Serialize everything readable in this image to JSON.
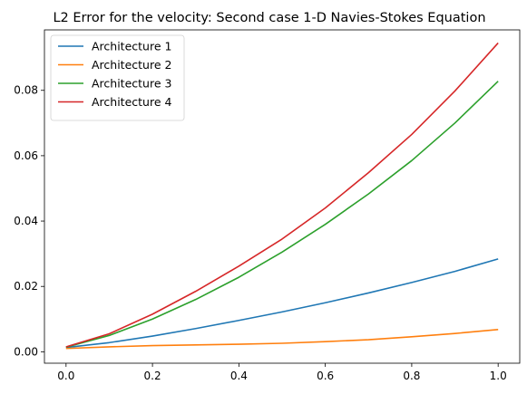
{
  "chart_data": {
    "type": "line",
    "title": "L2 Error for the velocity: Second case 1-D Navies-Stokes Equation",
    "xlabel": "",
    "ylabel": "",
    "xlim": [
      -0.05,
      1.05
    ],
    "ylim": [
      -0.0035,
      0.0985
    ],
    "x_ticks": [
      0.0,
      0.2,
      0.4,
      0.6,
      0.8,
      1.0
    ],
    "x_tick_labels": [
      "0.0",
      "0.2",
      "0.4",
      "0.6",
      "0.8",
      "1.0"
    ],
    "y_ticks": [
      0.0,
      0.02,
      0.04,
      0.06,
      0.08
    ],
    "y_tick_labels": [
      "0.00",
      "0.02",
      "0.04",
      "0.06",
      "0.08"
    ],
    "grid": false,
    "legend_position": "top-left",
    "x": [
      0.0,
      0.1,
      0.2,
      0.3,
      0.4,
      0.5,
      0.6,
      0.7,
      0.8,
      0.9,
      1.0
    ],
    "series": [
      {
        "name": "Architecture 1",
        "color": "#1f77b4",
        "values": [
          0.0013,
          0.0028,
          0.0048,
          0.0071,
          0.0096,
          0.0122,
          0.015,
          0.018,
          0.0212,
          0.0246,
          0.0284
        ]
      },
      {
        "name": "Architecture 2",
        "color": "#ff7f0e",
        "values": [
          0.001,
          0.0015,
          0.0019,
          0.0021,
          0.0023,
          0.0026,
          0.0031,
          0.0037,
          0.0046,
          0.0056,
          0.0068
        ]
      },
      {
        "name": "Architecture 3",
        "color": "#2ca02c",
        "values": [
          0.0014,
          0.005,
          0.01,
          0.016,
          0.0228,
          0.0305,
          0.039,
          0.0483,
          0.0585,
          0.07,
          0.0828
        ]
      },
      {
        "name": "Architecture 4",
        "color": "#d62728",
        "values": [
          0.0015,
          0.0055,
          0.0115,
          0.0185,
          0.0262,
          0.0345,
          0.044,
          0.0548,
          0.0665,
          0.0798,
          0.0945
        ]
      }
    ]
  }
}
